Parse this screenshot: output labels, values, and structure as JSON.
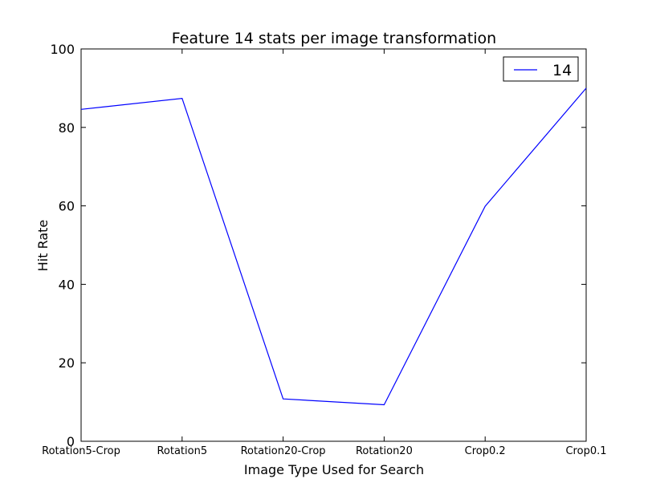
{
  "chart_data": {
    "type": "line",
    "title": "Feature 14 stats per image transformation",
    "xlabel": "Image Type Used for Search",
    "ylabel": "Hit Rate",
    "categories": [
      "Rotation5-Crop",
      "Rotation5",
      "Rotation20-Crop",
      "Rotation20",
      "Crop0.2",
      "Crop0.1"
    ],
    "ylim": [
      0,
      100
    ],
    "yticks": [
      "0",
      "20",
      "40",
      "60",
      "80",
      "100"
    ],
    "grid": false,
    "legend_position": "top-right",
    "series": [
      {
        "name": "14",
        "color": "#0000ff",
        "values": [
          84.6,
          87.4,
          10.8,
          9.3,
          59.9,
          90.0
        ]
      }
    ]
  }
}
